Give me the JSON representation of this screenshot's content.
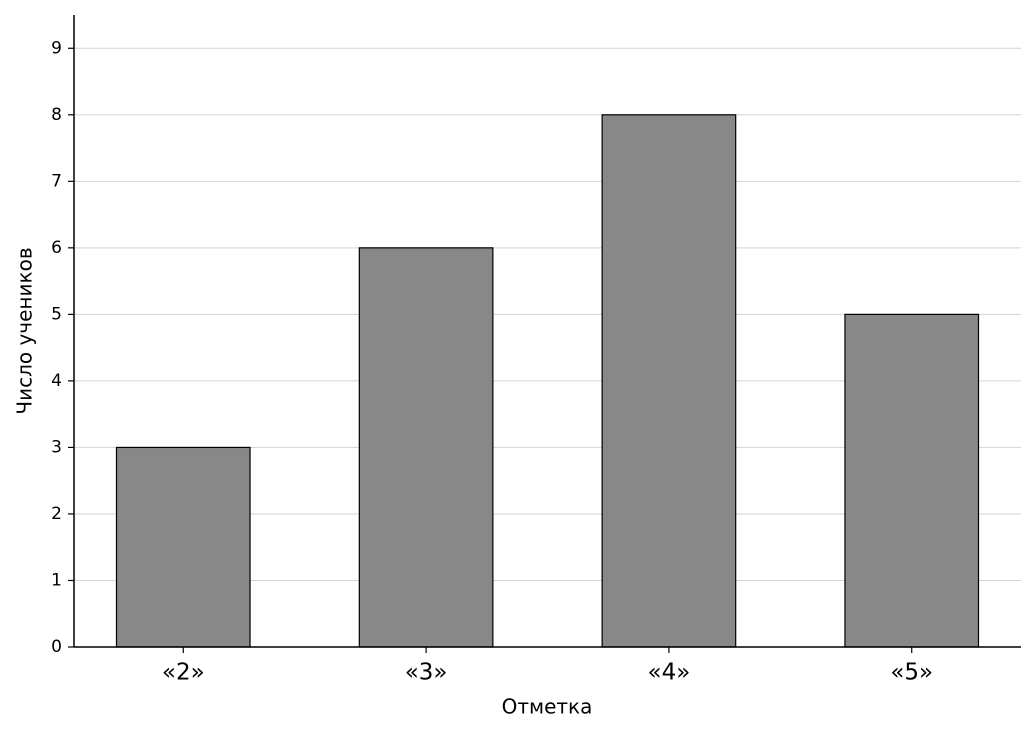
{
  "chart_data": {
    "type": "bar",
    "x_label": "Отметка",
    "y_label": "Число учеников",
    "categories": [
      "«2»",
      "«3»",
      "«4»",
      "«5»"
    ],
    "values": [
      3,
      6,
      8,
      5
    ],
    "color": "#888888",
    "ylim": [
      0,
      9.5
    ],
    "yticks": [
      0,
      1,
      2,
      3,
      4,
      5,
      6,
      7,
      8,
      9
    ],
    "grid": true
  }
}
